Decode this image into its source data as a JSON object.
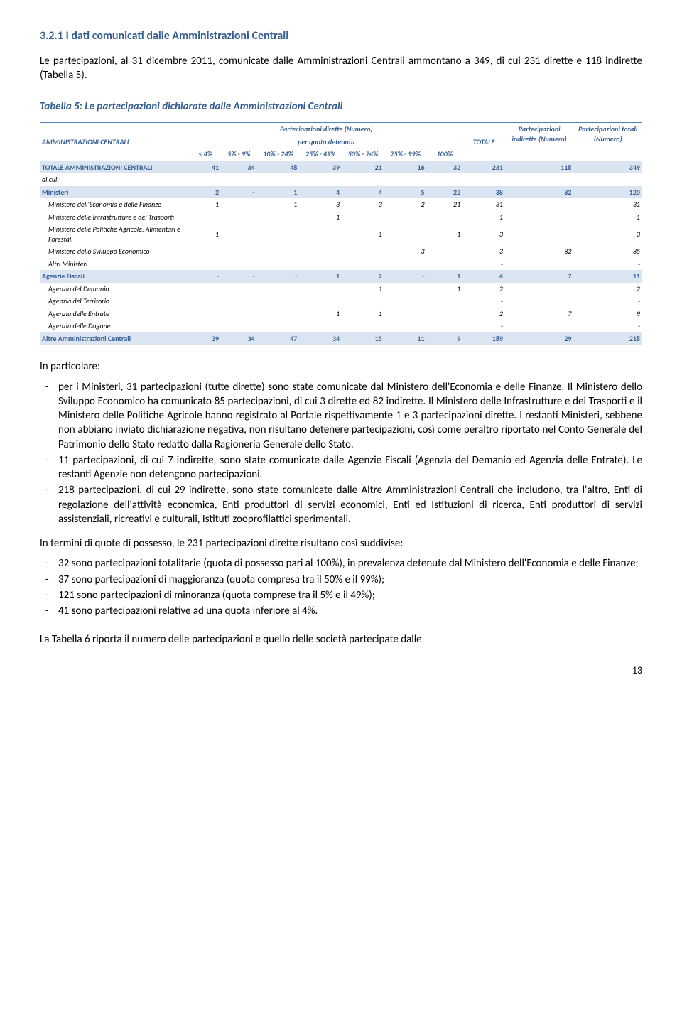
{
  "heading": "3.2.1   I dati comunicati dalle Amministrazioni Centrali",
  "intro": "Le partecipazioni, al 31 dicembre 2011, comunicate dalle Amministrazioni Centrali ammontano a 349, di cui 231 dirette e 118 indirette (Tabella 5).",
  "table_caption": "Tabella 5: Le partecipazioni dichiarate dalle Amministrazioni Centrali",
  "table": {
    "header": {
      "label": "AMMINISTRAZIONI CENTRALI",
      "dirette": "Partecipazioni dirette (Numero)",
      "per_quota": "per quota detenuta",
      "totale": "TOTALE",
      "indirette": "Partecipazioni indirette (Numero)",
      "totali": "Partecipazioni totali (Numero)",
      "cols": [
        "< 4%",
        "5% - 9%",
        "10% - 24%",
        "25% - 49%",
        "50% - 74%",
        "75% - 99%",
        "100%"
      ]
    },
    "rows": [
      {
        "cls": "row-totale",
        "cells": [
          "TOTALE AMMINISTRAZIONI CENTRALI",
          "41",
          "34",
          "48",
          "39",
          "21",
          "16",
          "32",
          "231",
          "118",
          "349"
        ]
      },
      {
        "cls": "row-dicui",
        "cells": [
          "di cui:",
          "",
          "",
          "",
          "",
          "",
          "",
          "",
          "",
          "",
          ""
        ]
      },
      {
        "cls": "row-ministeri",
        "cells": [
          "Ministeri",
          "2",
          "-",
          "1",
          "4",
          "4",
          "5",
          "22",
          "38",
          "82",
          "120"
        ]
      },
      {
        "cls": "row-sub",
        "cells": [
          "Ministero dell'Economia e delle Finanze",
          "1",
          "",
          "1",
          "3",
          "3",
          "2",
          "21",
          "31",
          "",
          "31"
        ]
      },
      {
        "cls": "row-sub",
        "cells": [
          "Ministero delle Infrastrutture e dei Trasporti",
          "",
          "",
          "",
          "1",
          "",
          "",
          "",
          "1",
          "",
          "1"
        ]
      },
      {
        "cls": "row-sub",
        "cells": [
          "Ministero delle Politiche Agricole, Alimentari e Forestali",
          "1",
          "",
          "",
          "",
          "1",
          "",
          "1",
          "3",
          "",
          "3"
        ]
      },
      {
        "cls": "row-sub",
        "cells": [
          "Ministero dello Sviluppo Economico",
          "",
          "",
          "",
          "",
          "",
          "3",
          "",
          "3",
          "82",
          "85"
        ]
      },
      {
        "cls": "row-sub",
        "cells": [
          "Altri Ministeri",
          "",
          "",
          "",
          "",
          "",
          "",
          "",
          "-",
          "",
          "-"
        ]
      },
      {
        "cls": "row-agenzie",
        "cells": [
          "Agenzie Fiscali",
          "-",
          "-",
          "-",
          "1",
          "2",
          "-",
          "1",
          "4",
          "7",
          "11"
        ]
      },
      {
        "cls": "row-sub",
        "cells": [
          "Agenzia del Demanio",
          "",
          "",
          "",
          "",
          "1",
          "",
          "1",
          "2",
          "",
          "2"
        ]
      },
      {
        "cls": "row-sub",
        "cells": [
          "Agenzia del Territorio",
          "",
          "",
          "",
          "",
          "",
          "",
          "",
          "-",
          "",
          "-"
        ]
      },
      {
        "cls": "row-sub",
        "cells": [
          "Agenzia delle Entrate",
          "",
          "",
          "",
          "1",
          "1",
          "",
          "",
          "2",
          "7",
          "9"
        ]
      },
      {
        "cls": "row-sub",
        "cells": [
          "Agenzia delle Dogane",
          "",
          "",
          "",
          "",
          "",
          "",
          "",
          "-",
          "",
          "-"
        ]
      },
      {
        "cls": "row-altre",
        "cells": [
          "Altre Amministrazioni Centrali",
          "39",
          "34",
          "47",
          "34",
          "15",
          "11",
          "9",
          "189",
          "29",
          "218"
        ]
      }
    ]
  },
  "in_particolare": "In particolare:",
  "bullets1": [
    "per i Ministeri, 31 partecipazioni (tutte dirette) sono state comunicate dal Ministero dell'Economia e delle Finanze. Il Ministero dello Sviluppo Economico ha comunicato 85 partecipazioni, di cui 3 dirette ed 82 indirette. Il Ministero delle Infrastrutture e dei Trasporti e il Ministero delle Politiche Agricole hanno registrato al Portale rispettivamente 1 e 3 partecipazioni dirette. I restanti Ministeri, sebbene non abbiano inviato dichiarazione negativa, non risultano detenere partecipazioni, così come peraltro riportato nel Conto Generale del Patrimonio dello Stato redatto dalla Ragioneria Generale dello Stato.",
    "11 partecipazioni, di cui 7 indirette, sono state comunicate dalle Agenzie Fiscali (Agenzia del Demanio ed Agenzia delle Entrate). Le restanti Agenzie non detengono partecipazioni.",
    "218 partecipazioni, di cui 29 indirette, sono state comunicate dalle Altre Amministrazioni Centrali che includono, tra l'altro, Enti di regolazione dell'attività economica, Enti produttori di servizi economici, Enti ed Istituzioni di ricerca, Enti produttori di servizi assistenziali, ricreativi e culturali, Istituti zooprofilattici sperimentali."
  ],
  "quote_intro": "In termini di quote di possesso, le 231 partecipazioni dirette risultano così suddivise:",
  "bullets2": [
    "32 sono partecipazioni totalitarie (quota di possesso pari al 100%), in prevalenza  detenute dal Ministero dell'Economia e delle Finanze;",
    "37 sono partecipazioni di maggioranza (quota compresa tra il 50% e il 99%);",
    "121 sono partecipazioni di minoranza (quota comprese tra il 5% e il 49%);",
    "41 sono partecipazioni relative ad una quota inferiore al 4%."
  ],
  "last_para": "La Tabella 6 riporta il numero delle partecipazioni e quello delle società partecipate dalle",
  "page_num": "13"
}
